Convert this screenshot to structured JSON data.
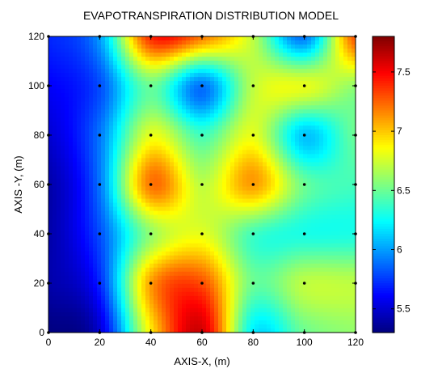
{
  "chart_data": {
    "type": "heatmap",
    "title": "EVAPOTRANSPIRATION DISTRIBUTION MODEL",
    "xlabel": "AXIS-X, (m)",
    "ylabel": "AXIS -Y, (m)",
    "xlim": [
      0,
      120
    ],
    "ylim": [
      0,
      120
    ],
    "xticks": [
      "0",
      "20",
      "40",
      "60",
      "80",
      "100",
      "120"
    ],
    "yticks": [
      "0",
      "20",
      "40",
      "60",
      "80",
      "100",
      "120"
    ],
    "grid": false,
    "colorbar": {
      "range": [
        5.3,
        7.8
      ],
      "ticks": [
        "5.5",
        "6",
        "6.5",
        "7",
        "7.5"
      ],
      "tick_values": [
        5.5,
        6,
        6.5,
        7,
        7.5
      ],
      "colormap": "jet"
    },
    "x": [
      0,
      20,
      40,
      60,
      80,
      100,
      120
    ],
    "y": [
      0,
      20,
      40,
      60,
      80,
      100,
      120
    ],
    "values": [
      [
        5.3,
        5.5,
        6.9,
        7.6,
        6.2,
        6.5,
        6.6
      ],
      [
        5.4,
        5.7,
        7.1,
        7.3,
        6.5,
        6.7,
        6.7
      ],
      [
        5.4,
        5.8,
        6.6,
        6.8,
        6.4,
        6.3,
        6.3
      ],
      [
        5.4,
        5.9,
        7.2,
        6.7,
        7.1,
        6.5,
        6.4
      ],
      [
        5.5,
        5.9,
        6.8,
        6.4,
        6.8,
        6.1,
        6.5
      ],
      [
        5.6,
        5.8,
        6.5,
        5.9,
        6.7,
        6.8,
        6.6
      ],
      [
        5.7,
        6.0,
        7.4,
        7.2,
        6.7,
        5.9,
        7.3
      ]
    ]
  }
}
